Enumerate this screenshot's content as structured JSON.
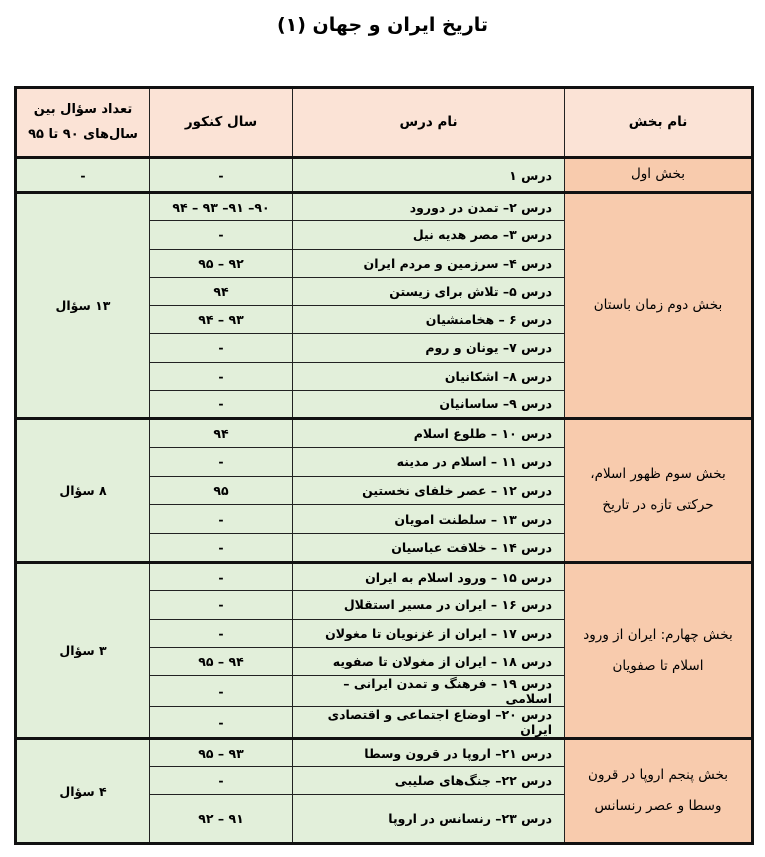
{
  "title": "تاریخ ایران و جهان (۱)",
  "headers": {
    "section": "نام بخش",
    "lesson": "نام درس",
    "year": "سال کنکور",
    "count": "تعداد سؤال بین سال‌های ۹۰ تا ۹۵"
  },
  "sections": [
    {
      "name": "بخش اول",
      "count": "-",
      "lessons": [
        {
          "lesson": "درس ۱",
          "years": "-"
        }
      ]
    },
    {
      "name": "بخش دوم زمان باستان",
      "count": "۱۳ سؤال",
      "lessons": [
        {
          "lesson": "درس ۲– تمدن در دورود",
          "years": "۹۰– ۹۱– ۹۳ – ۹۴"
        },
        {
          "lesson": "درس ۳– مصر هدیه نیل",
          "years": "-"
        },
        {
          "lesson": "درس ۴– سرزمین و مردم ایران",
          "years": "۹۲ – ۹۵"
        },
        {
          "lesson": "درس ۵– تلاش برای زیستن",
          "years": "۹۴"
        },
        {
          "lesson": "درس ۶ – هخامنشیان",
          "years": "۹۳ – ۹۴"
        },
        {
          "lesson": "درس ۷– یونان و روم",
          "years": "-"
        },
        {
          "lesson": "درس ۸– اشکانیان",
          "years": "-"
        },
        {
          "lesson": "درس ۹– ساسانیان",
          "years": "-"
        }
      ]
    },
    {
      "name": "بخش سوم ظهور اسلام، حرکتی تازه در تاریخ",
      "count": "۸ سؤال",
      "lessons": [
        {
          "lesson": "درس ۱۰ – طلوع اسلام",
          "years": "۹۴"
        },
        {
          "lesson": "درس ۱۱ – اسلام در مدینه",
          "years": "-"
        },
        {
          "lesson": "درس ۱۲ – عصر خلفای نخستین",
          "years": "۹۵"
        },
        {
          "lesson": "درس ۱۳ – سلطنت امویان",
          "years": "-"
        },
        {
          "lesson": "درس ۱۴ – خلافت عباسیان",
          "years": "-"
        }
      ]
    },
    {
      "name": "بخش چهارم: ایران از ورود اسلام تا صفویان",
      "count": "۳ سؤال",
      "lessons": [
        {
          "lesson": "درس ۱۵ – ورود اسلام به ایران",
          "years": "-"
        },
        {
          "lesson": "درس ۱۶ – ایران در مسیر استقلال",
          "years": "-"
        },
        {
          "lesson": "درس ۱۷ – ایران از غزنویان تا مغولان",
          "years": "-"
        },
        {
          "lesson": "درس ۱۸ – ایران از مغولان تا صفویه",
          "years": "۹۴ – ۹۵"
        },
        {
          "lesson": "درس ۱۹ – فرهنگ و تمدن ایرانی – اسلامی",
          "years": "-"
        },
        {
          "lesson": "درس ۲۰– اوضاع اجتماعی و اقتصادی ایران",
          "years": "-"
        }
      ]
    },
    {
      "name": "بخش پنجم اروپا در قرون وسطا و عصر رنسانس",
      "count": "۴ سؤال",
      "lessons": [
        {
          "lesson": "درس ۲۱– اروپا در قرون وسطا",
          "years": "۹۳ – ۹۵"
        },
        {
          "lesson": "درس ۲۲– جنگ‌های صلیبی",
          "years": "-"
        },
        {
          "lesson": "درس ۲۳– رنسانس در اروپا",
          "years": "۹۱ – ۹۲"
        }
      ]
    }
  ],
  "colors": {
    "header": "#fbe3d6",
    "section": "#f8cbad",
    "body": "#e2efda"
  }
}
